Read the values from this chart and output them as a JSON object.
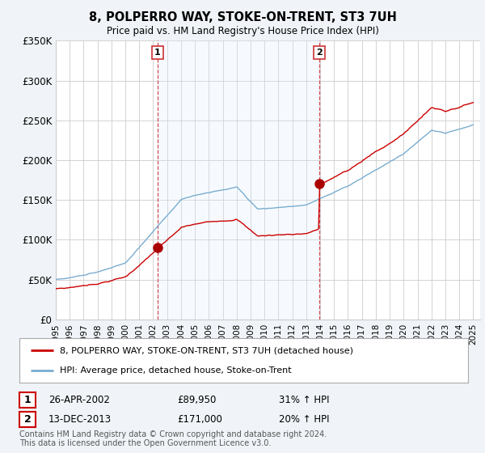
{
  "title": "8, POLPERRO WAY, STOKE-ON-TRENT, ST3 7UH",
  "subtitle": "Price paid vs. HM Land Registry's House Price Index (HPI)",
  "legend_line1": "8, POLPERRO WAY, STOKE-ON-TRENT, ST3 7UH (detached house)",
  "legend_line2": "HPI: Average price, detached house, Stoke-on-Trent",
  "transaction1_label": "1",
  "transaction1_date": "26-APR-2002",
  "transaction1_price": "£89,950",
  "transaction1_hpi": "31% ↑ HPI",
  "transaction1_year": 2002.32,
  "transaction1_value": 89950,
  "transaction2_label": "2",
  "transaction2_date": "13-DEC-2013",
  "transaction2_price": "£171,000",
  "transaction2_hpi": "20% ↑ HPI",
  "transaction2_year": 2013.95,
  "transaction2_value": 171000,
  "footnote": "Contains HM Land Registry data © Crown copyright and database right 2024.\nThis data is licensed under the Open Government Licence v3.0.",
  "price_line_color": "#cc0000",
  "hpi_line_color": "#7aadcf",
  "vline_color": "#cc3333",
  "fill_color": "#ddeeff",
  "ylim": [
    0,
    350000
  ],
  "yticks": [
    0,
    50000,
    100000,
    150000,
    200000,
    250000,
    300000,
    350000
  ],
  "ytick_labels": [
    "£0",
    "£50K",
    "£100K",
    "£150K",
    "£200K",
    "£250K",
    "£300K",
    "£350K"
  ],
  "xmin": 1995,
  "xmax": 2025.5,
  "background_color": "#f0f4f8",
  "plot_bg_color": "#ffffff",
  "grid_color": "#cccccc"
}
